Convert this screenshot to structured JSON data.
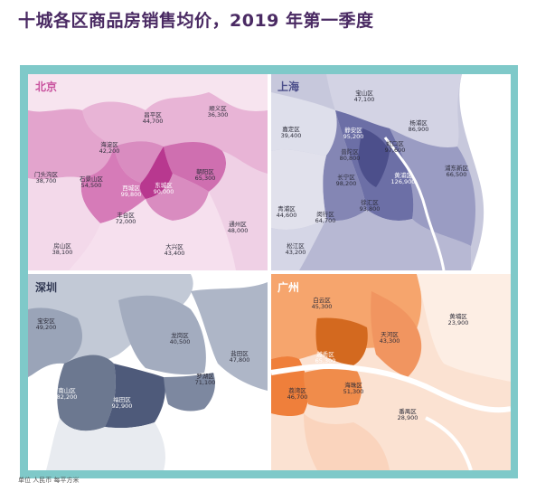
{
  "title": "十城各区商品房销售均价，2019 年第一季度",
  "footer": "单位  人民币 每平方米",
  "colors": {
    "frame": "#7fc9c9",
    "beijing": "#c9529e",
    "shanghai": "#4c4f8b",
    "shenzhen": "#4e5a7a",
    "guangzhou": "#ef8a43"
  },
  "panels": {
    "beijing": {
      "label": "北京",
      "districts": [
        {
          "name": "昌平区",
          "price": "44,700"
        },
        {
          "name": "顺义区",
          "price": "36,300"
        },
        {
          "name": "海淀区",
          "price": "42,200"
        },
        {
          "name": "门头沟区",
          "price": "38,700"
        },
        {
          "name": "石景山区",
          "price": "54,500"
        },
        {
          "name": "西城区",
          "price": "99,800"
        },
        {
          "name": "东城区",
          "price": "90,000"
        },
        {
          "name": "朝阳区",
          "price": "65,300"
        },
        {
          "name": "丰台区",
          "price": "72,000"
        },
        {
          "name": "通州区",
          "price": "48,000"
        },
        {
          "name": "房山区",
          "price": "38,100"
        },
        {
          "name": "大兴区",
          "price": "43,400"
        }
      ]
    },
    "shanghai": {
      "label": "上海",
      "districts": [
        {
          "name": "宝山区",
          "price": "47,100"
        },
        {
          "name": "杨浦区",
          "price": "86,900"
        },
        {
          "name": "嘉定区",
          "price": "39,400"
        },
        {
          "name": "静安区",
          "price": "95,200"
        },
        {
          "name": "虹口区",
          "price": "97,600"
        },
        {
          "name": "普陀区",
          "price": "80,800"
        },
        {
          "name": "浦东新区",
          "price": "66,500"
        },
        {
          "name": "长宁区",
          "price": "98,200"
        },
        {
          "name": "黄浦区",
          "price": "126,900"
        },
        {
          "name": "徐汇区",
          "price": "93,800"
        },
        {
          "name": "青浦区",
          "price": "44,600"
        },
        {
          "name": "闵行区",
          "price": "64,700"
        },
        {
          "name": "松江区",
          "price": "43,200"
        }
      ]
    },
    "shenzhen": {
      "label": "深圳",
      "districts": [
        {
          "name": "宝安区",
          "price": "49,200"
        },
        {
          "name": "龙岗区",
          "price": "40,500"
        },
        {
          "name": "盐田区",
          "price": "47,800"
        },
        {
          "name": "罗湖区",
          "price": "71,100"
        },
        {
          "name": "南山区",
          "price": "82,200"
        },
        {
          "name": "福田区",
          "price": "92,900"
        }
      ]
    },
    "guangzhou": {
      "label": "广州",
      "districts": [
        {
          "name": "白云区",
          "price": "45,300"
        },
        {
          "name": "黄埔区",
          "price": "23,900"
        },
        {
          "name": "天河区",
          "price": "43,300"
        },
        {
          "name": "越秀区",
          "price": "65,300"
        },
        {
          "name": "荔湾区",
          "price": "46,700"
        },
        {
          "name": "海珠区",
          "price": "51,300"
        },
        {
          "name": "番禺区",
          "price": "28,900"
        }
      ]
    }
  }
}
